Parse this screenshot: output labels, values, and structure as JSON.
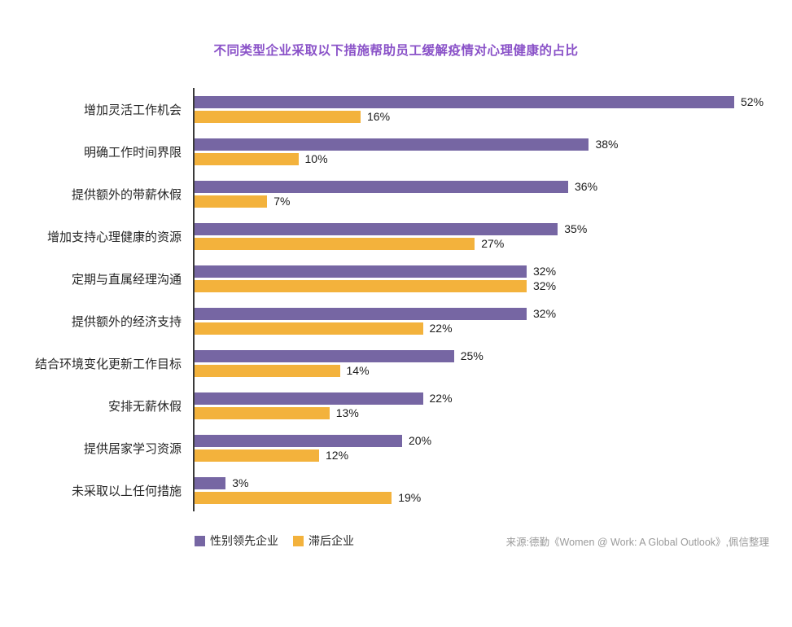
{
  "title": "不同类型企业采取以下措施帮助员工缓解疫情对心理健康的占比",
  "chart_data": {
    "type": "bar",
    "orientation": "horizontal",
    "title": "不同类型企业采取以下措施帮助员工缓解疫情对心理健康的占比",
    "categories": [
      "增加灵活工作机会",
      "明确工作时间界限",
      "提供额外的带薪休假",
      "增加支持心理健康的资源",
      "定期与直属经理沟通",
      "提供额外的经济支持",
      "结合环境变化更新工作目标",
      "安排无薪休假",
      "提供居家学习资源",
      "未采取以上任何措施"
    ],
    "series": [
      {
        "name": "性别领先企业",
        "color": "#7666a3",
        "values": [
          52,
          38,
          36,
          35,
          32,
          32,
          25,
          22,
          20,
          3
        ]
      },
      {
        "name": "滞后企业",
        "color": "#f3b23c",
        "values": [
          16,
          10,
          7,
          27,
          32,
          22,
          14,
          13,
          12,
          19
        ]
      }
    ],
    "xlim": [
      0,
      56
    ],
    "value_suffix": "%",
    "grid": false,
    "legend_position": "bottom-left"
  },
  "legend": [
    {
      "label": "性别领先企业",
      "color": "#7666a3"
    },
    {
      "label": "滞后企业",
      "color": "#f3b23c"
    }
  ],
  "source": "来源:德勤《Women @ Work: A Global Outlook》,佩信整理",
  "colors": {
    "title": "#8a52c8",
    "axis_line": "#3a3a3a",
    "value_text": "#1b1b1b",
    "source_text": "#9a9a9a"
  }
}
